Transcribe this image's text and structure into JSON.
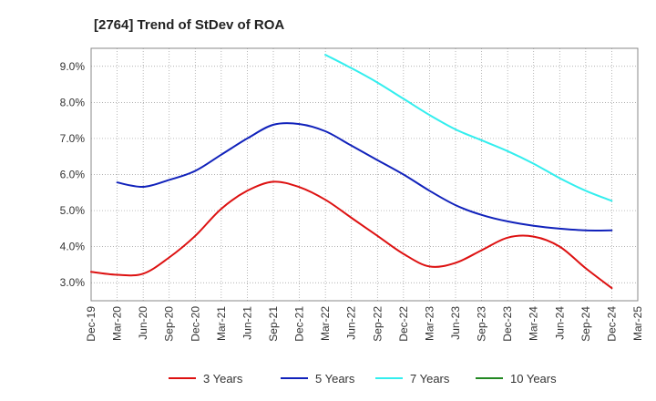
{
  "chart_data": {
    "type": "line",
    "title": "[2764]  Trend of StDev of ROA",
    "xlabel": "",
    "ylabel": "",
    "x_ticks": [
      "Dec-19",
      "Mar-20",
      "Jun-20",
      "Sep-20",
      "Dec-20",
      "Mar-21",
      "Jun-21",
      "Sep-21",
      "Dec-21",
      "Mar-22",
      "Jun-22",
      "Sep-22",
      "Dec-22",
      "Mar-23",
      "Jun-23",
      "Sep-23",
      "Dec-23",
      "Mar-24",
      "Jun-24",
      "Sep-24",
      "Dec-24",
      "Mar-25"
    ],
    "y_ticks": [
      "3.0%",
      "4.0%",
      "5.0%",
      "6.0%",
      "7.0%",
      "8.0%",
      "9.0%"
    ],
    "y_tick_values": [
      3.0,
      4.0,
      5.0,
      6.0,
      7.0,
      8.0,
      9.0
    ],
    "ylim": [
      2.5,
      9.5
    ],
    "grid": true,
    "legend_position": "bottom",
    "series": [
      {
        "name": "3 Years",
        "color": "#dd1111",
        "x": [
          "Dec-19",
          "Mar-20",
          "Jun-20",
          "Sep-20",
          "Dec-20",
          "Mar-21",
          "Jun-21",
          "Sep-21",
          "Dec-21",
          "Mar-22",
          "Jun-22",
          "Sep-22",
          "Dec-22",
          "Mar-23",
          "Jun-23",
          "Sep-23",
          "Dec-23",
          "Mar-24",
          "Jun-24",
          "Sep-24",
          "Dec-24"
        ],
        "values": [
          3.3,
          3.22,
          3.25,
          3.7,
          4.3,
          5.05,
          5.55,
          5.8,
          5.65,
          5.3,
          4.8,
          4.3,
          3.8,
          3.45,
          3.55,
          3.9,
          4.25,
          4.28,
          4.0,
          3.4,
          2.85
        ]
      },
      {
        "name": "5 Years",
        "color": "#1122bb",
        "x": [
          "Mar-20",
          "Jun-20",
          "Sep-20",
          "Dec-20",
          "Mar-21",
          "Jun-21",
          "Sep-21",
          "Dec-21",
          "Mar-22",
          "Jun-22",
          "Sep-22",
          "Dec-22",
          "Mar-23",
          "Jun-23",
          "Sep-23",
          "Dec-23",
          "Mar-24",
          "Jun-24",
          "Sep-24",
          "Dec-24"
        ],
        "values": [
          5.78,
          5.66,
          5.85,
          6.1,
          6.55,
          7.0,
          7.38,
          7.4,
          7.2,
          6.8,
          6.4,
          6.0,
          5.55,
          5.15,
          4.88,
          4.7,
          4.58,
          4.5,
          4.45,
          4.45
        ]
      },
      {
        "name": "7 Years",
        "color": "#33eeee",
        "x": [
          "Mar-22",
          "Jun-22",
          "Sep-22",
          "Dec-22",
          "Mar-23",
          "Jun-23",
          "Sep-23",
          "Dec-23",
          "Mar-24",
          "Jun-24",
          "Sep-24",
          "Dec-24"
        ],
        "values": [
          9.32,
          8.95,
          8.55,
          8.1,
          7.65,
          7.25,
          6.95,
          6.65,
          6.3,
          5.9,
          5.55,
          5.27
        ]
      },
      {
        "name": "10 Years",
        "color": "#228822",
        "x": [],
        "values": []
      }
    ]
  }
}
